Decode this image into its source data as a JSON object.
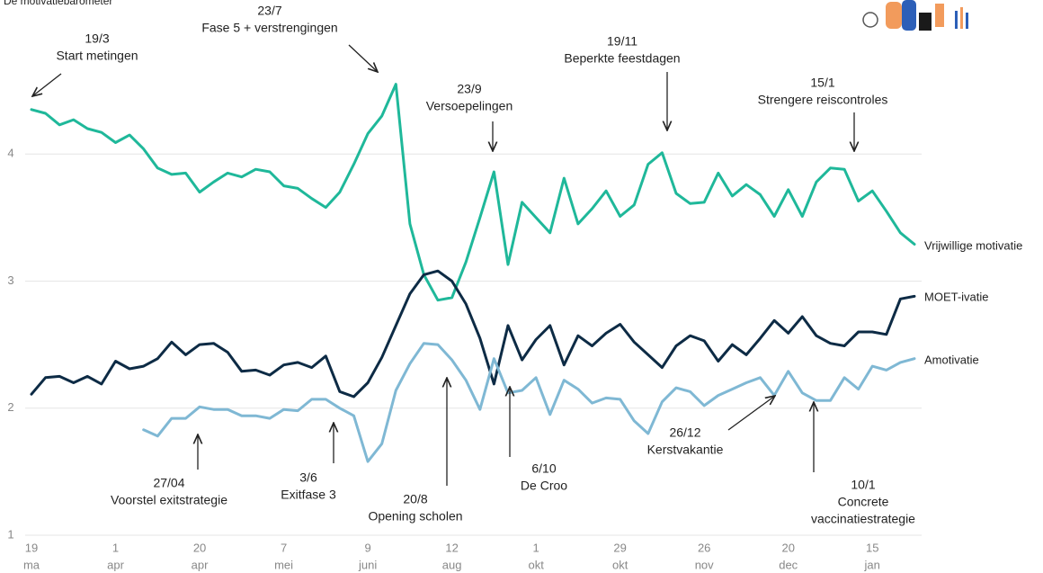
{
  "chart_data": {
    "type": "line",
    "title": "De motivatiebarometer",
    "x": [
      0,
      1,
      2,
      3,
      4,
      5,
      6,
      7,
      8,
      9,
      10,
      11,
      12,
      13,
      14,
      15,
      16,
      17,
      18,
      19,
      20,
      21,
      22,
      23,
      24,
      25,
      26,
      27,
      28,
      29,
      30,
      31,
      32,
      33,
      34,
      35,
      36,
      37,
      38,
      39,
      40,
      41,
      42,
      43,
      44,
      45,
      46,
      47,
      48,
      49,
      50,
      51,
      52,
      53,
      54,
      55,
      56,
      57,
      58,
      59,
      60,
      61,
      62,
      63
    ],
    "xlim": [
      0,
      63
    ],
    "xticks": [
      {
        "value": 0,
        "label": "19",
        "month": "ma"
      },
      {
        "value": 6,
        "label": "1",
        "month": "apr"
      },
      {
        "value": 12,
        "label": "20",
        "month": "apr"
      },
      {
        "value": 18,
        "label": "7",
        "month": "mei"
      },
      {
        "value": 24,
        "label": "9",
        "month": "juni"
      },
      {
        "value": 30,
        "label": "12",
        "month": "aug"
      },
      {
        "value": 36,
        "label": "1",
        "month": "okt"
      },
      {
        "value": 42,
        "label": "29",
        "month": "okt"
      },
      {
        "value": 48,
        "label": "26",
        "month": "nov"
      },
      {
        "value": 54,
        "label": "20",
        "month": "dec"
      },
      {
        "value": 60,
        "label": "15",
        "month": "jan"
      }
    ],
    "ylim": [
      1,
      5
    ],
    "yticks": [
      1,
      2,
      3,
      4
    ],
    "grid": true,
    "series": [
      {
        "name": "Vrijwillige motivatie",
        "color": "#1fb89a",
        "values": [
          4.35,
          4.32,
          4.23,
          4.27,
          4.2,
          4.17,
          4.09,
          4.15,
          4.04,
          3.89,
          3.84,
          3.85,
          3.7,
          3.78,
          3.85,
          3.82,
          3.88,
          3.86,
          3.75,
          3.73,
          3.65,
          3.58,
          3.7,
          3.92,
          4.16,
          4.3,
          4.55,
          3.45,
          3.05,
          2.85,
          2.87,
          3.15,
          3.5,
          3.86,
          3.13,
          3.62,
          3.5,
          3.38,
          3.81,
          3.45,
          3.57,
          3.71,
          3.51,
          3.6,
          3.92,
          4.01,
          3.69,
          3.61,
          3.62,
          3.85,
          3.67,
          3.76,
          3.68,
          3.51,
          3.72,
          3.51,
          3.78,
          3.89,
          3.88,
          3.63,
          3.71,
          3.55,
          3.38,
          3.29
        ]
      },
      {
        "name": "MOET-ivatie",
        "color": "#0d2b45",
        "values": [
          2.11,
          2.24,
          2.25,
          2.2,
          2.25,
          2.19,
          2.37,
          2.31,
          2.33,
          2.39,
          2.52,
          2.42,
          2.5,
          2.51,
          2.44,
          2.29,
          2.3,
          2.26,
          2.34,
          2.36,
          2.32,
          2.41,
          2.13,
          2.09,
          2.2,
          2.4,
          2.65,
          2.9,
          3.05,
          3.08,
          3.0,
          2.82,
          2.55,
          2.19,
          2.65,
          2.38,
          2.54,
          2.65,
          2.34,
          2.57,
          2.49,
          2.59,
          2.66,
          2.52,
          2.42,
          2.32,
          2.49,
          2.57,
          2.53,
          2.37,
          2.5,
          2.42,
          2.55,
          2.69,
          2.59,
          2.72,
          2.57,
          2.51,
          2.49,
          2.6,
          2.6,
          2.58,
          2.86,
          2.88
        ]
      },
      {
        "name": "Amotivatie",
        "color": "#7fb8d4",
        "values": [
          null,
          null,
          null,
          null,
          null,
          null,
          null,
          null,
          1.83,
          1.78,
          1.92,
          1.92,
          2.01,
          1.99,
          1.99,
          1.94,
          1.94,
          1.92,
          1.99,
          1.98,
          2.07,
          2.07,
          2.0,
          1.94,
          1.58,
          1.72,
          2.14,
          2.35,
          2.51,
          2.5,
          2.38,
          2.22,
          1.99,
          2.39,
          2.12,
          2.14,
          2.24,
          1.95,
          2.22,
          2.15,
          2.04,
          2.08,
          2.07,
          1.9,
          1.8,
          2.05,
          2.16,
          2.13,
          2.02,
          2.1,
          2.15,
          2.2,
          2.24,
          2.1,
          2.29,
          2.12,
          2.06,
          2.06,
          2.24,
          2.15,
          2.33,
          2.3,
          2.36,
          2.39
        ]
      }
    ],
    "annotations": [
      {
        "lines": [
          "19/3",
          "Start metingen"
        ]
      },
      {
        "lines": [
          "23/7",
          "Fase 5 + verstrengingen"
        ]
      },
      {
        "lines": [
          "23/9",
          "Versoepelingen"
        ]
      },
      {
        "lines": [
          "19/11",
          "Beperkte feestdagen"
        ]
      },
      {
        "lines": [
          "15/1",
          "Strengere reiscontroles"
        ]
      },
      {
        "lines": [
          "27/04",
          "Voorstel exitstrategie"
        ]
      },
      {
        "lines": [
          "3/6",
          "Exitfase 3"
        ]
      },
      {
        "lines": [
          "20/8",
          "Opening scholen"
        ]
      },
      {
        "lines": [
          "6/10",
          "De Croo"
        ]
      },
      {
        "lines": [
          "26/12",
          "Kerstvakantie"
        ]
      },
      {
        "lines": [
          "10/1",
          "Concrete",
          "vaccinatiestrategie"
        ]
      }
    ]
  }
}
